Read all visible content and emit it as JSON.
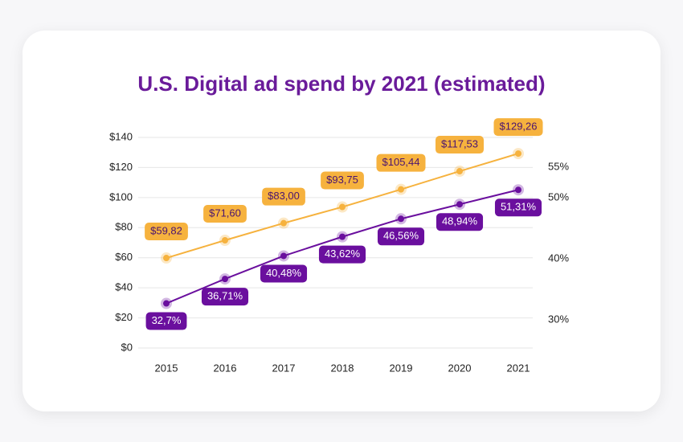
{
  "chart_data": {
    "type": "line",
    "title": "U.S. Digital ad spend by 2021 (estimated)",
    "categories": [
      "2015",
      "2016",
      "2017",
      "2018",
      "2019",
      "2020",
      "2021"
    ],
    "series": [
      {
        "color": "#f6b23e",
        "axis": "y",
        "values": [
          59.82,
          71.6,
          83.0,
          93.75,
          105.44,
          117.53,
          129.26
        ],
        "value_labels": [
          "$59,82",
          "$71,60",
          "$83,00",
          "$93,75",
          "$105,44",
          "$117,53",
          "$129,26"
        ]
      },
      {
        "color": "#6a0f9e",
        "axis": "y2",
        "values": [
          32.7,
          36.71,
          40.48,
          43.62,
          46.56,
          48.94,
          51.31
        ],
        "value_labels": [
          "32,7%",
          "36,71%",
          "40,48%",
          "43,62%",
          "46,56%",
          "48,94%",
          "51,31%"
        ]
      }
    ],
    "ylim": [
      0,
      140
    ],
    "yticks": [
      {
        "value": 0,
        "label": "$0"
      },
      {
        "value": 20,
        "label": "$20"
      },
      {
        "value": 40,
        "label": "$40"
      },
      {
        "value": 60,
        "label": "$60"
      },
      {
        "value": 80,
        "label": "$80"
      },
      {
        "value": 100,
        "label": "$100"
      },
      {
        "value": 120,
        "label": "$120"
      },
      {
        "value": 140,
        "label": "$140"
      }
    ],
    "y2lim": [
      25.4,
      59.9
    ],
    "y2ticks": [
      {
        "value": 30,
        "label": "30%"
      },
      {
        "value": 40,
        "label": "40%"
      },
      {
        "value": 50,
        "label": "50%"
      },
      {
        "value": 55,
        "label": "55%"
      }
    ],
    "grid": true
  }
}
